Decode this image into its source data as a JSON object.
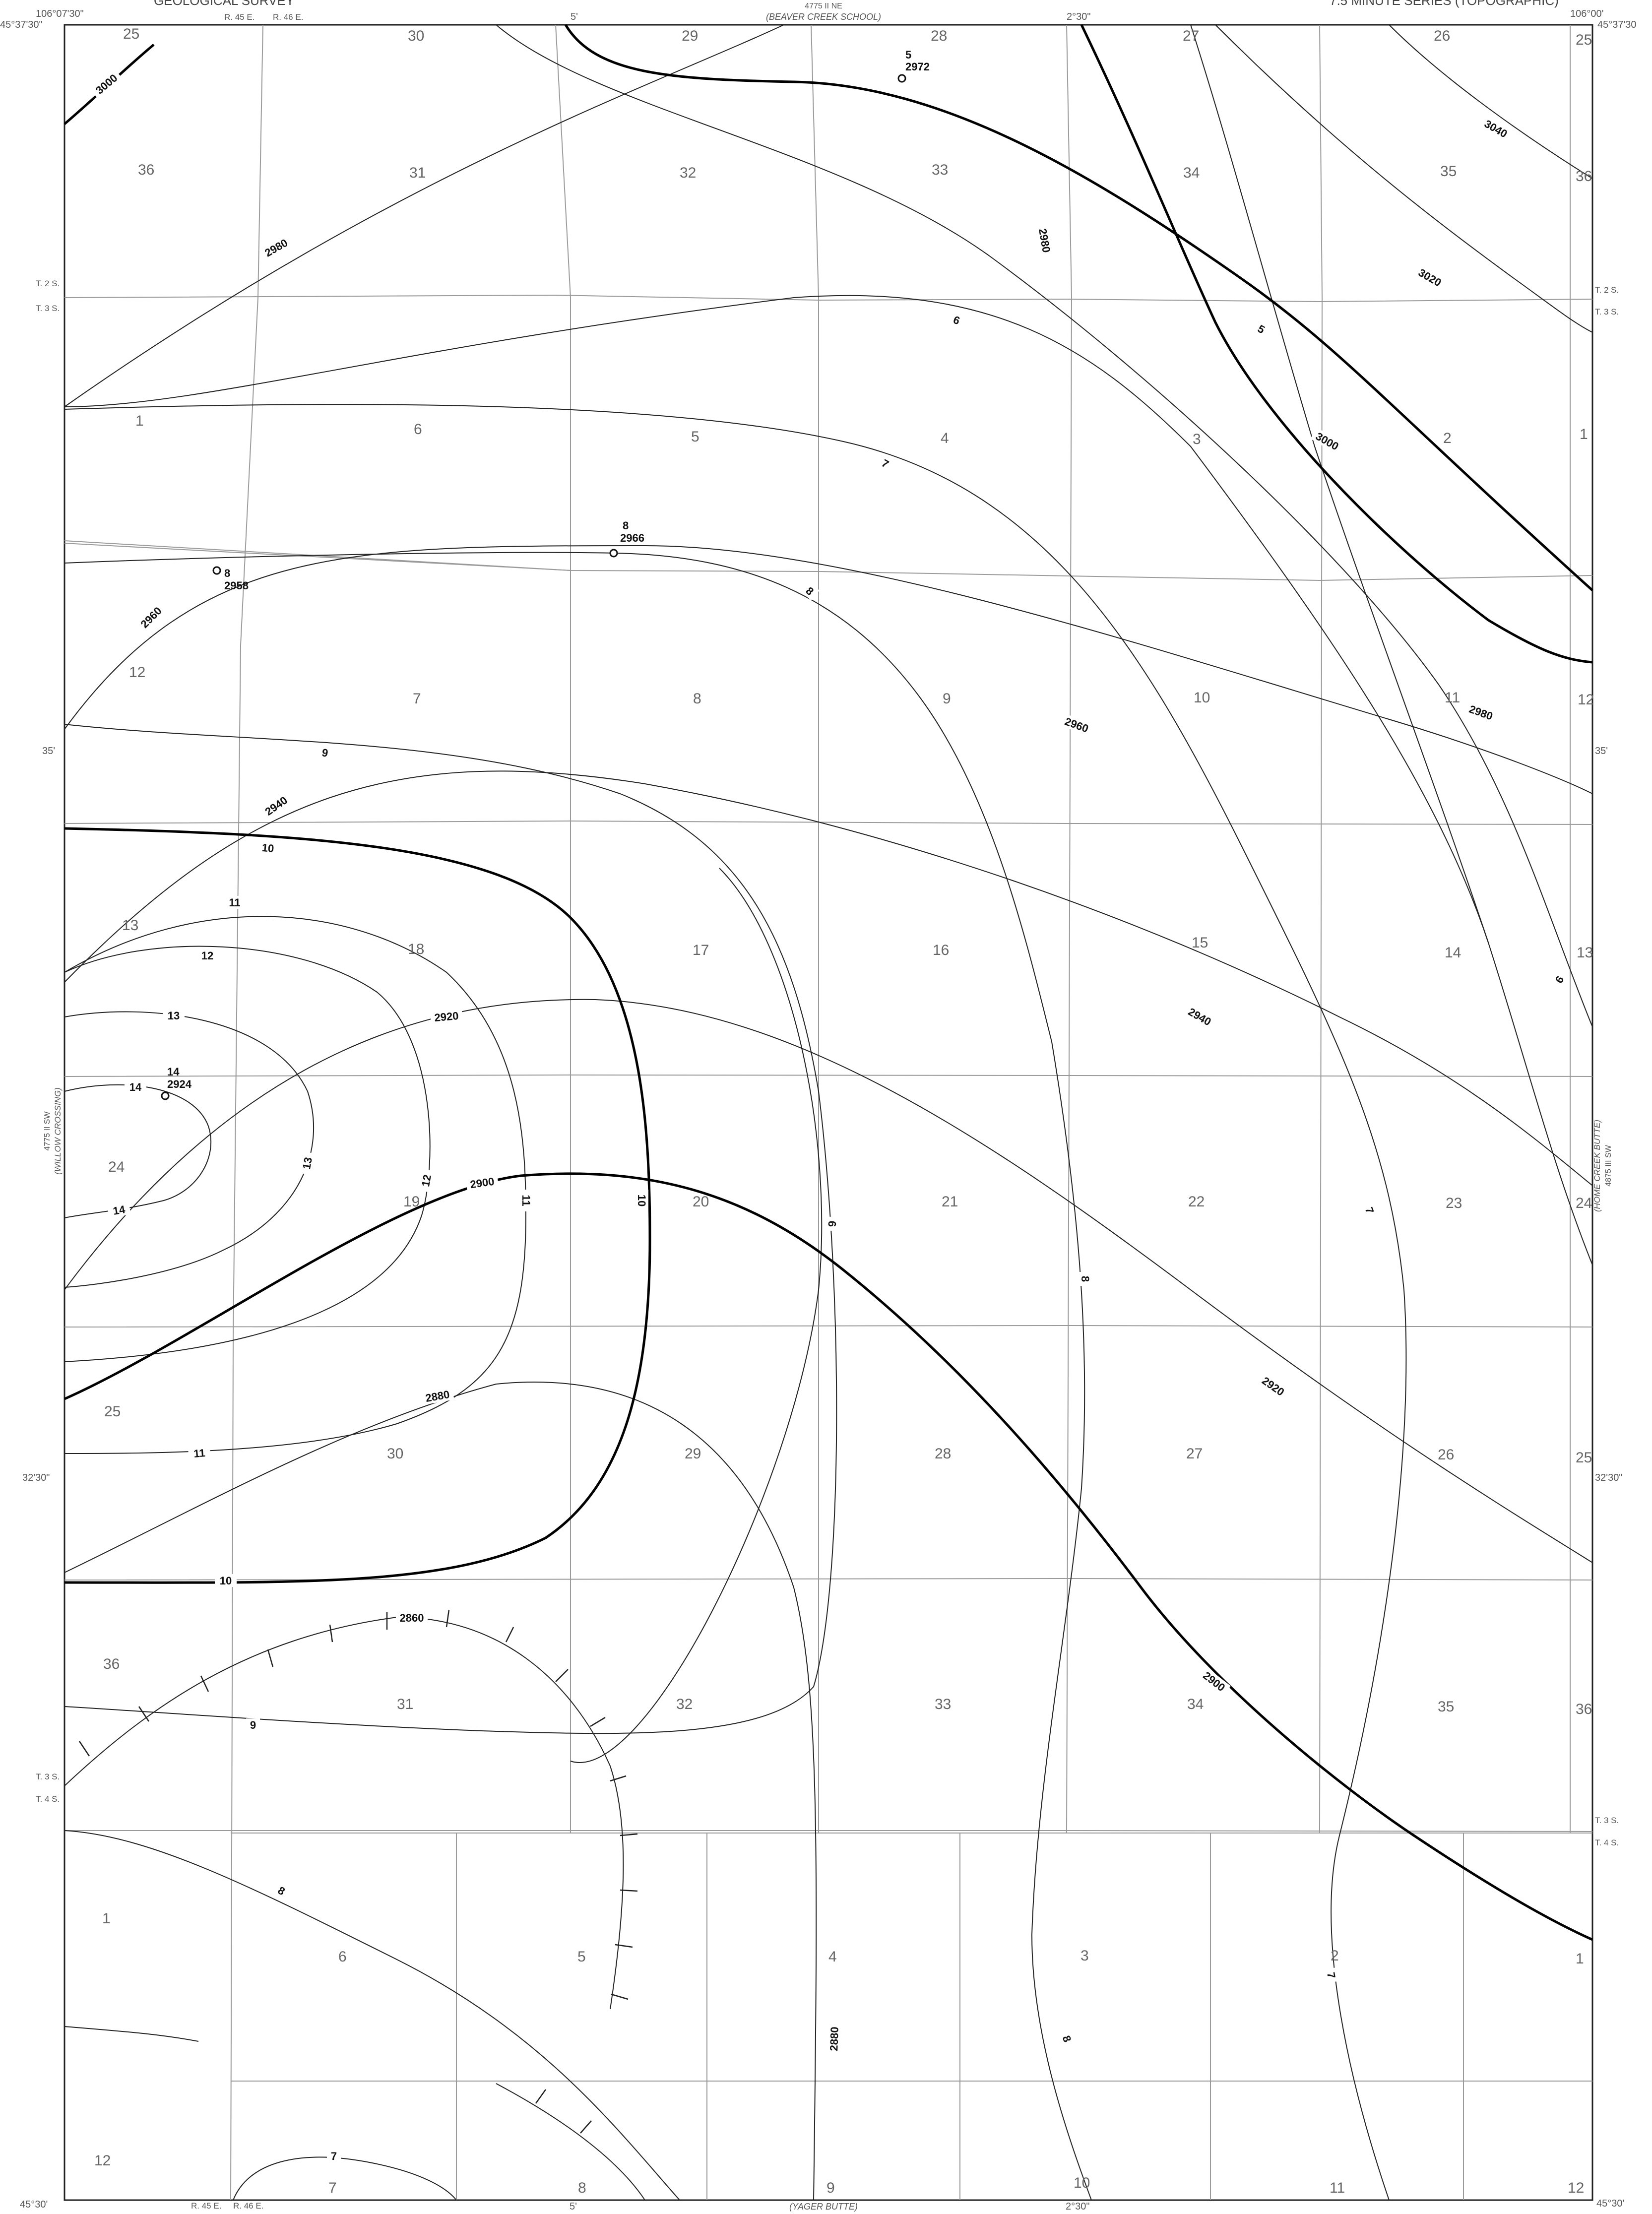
{
  "header": {
    "agency": "GEOLOGICAL SURVEY",
    "series": "7.5 MINUTE SERIES (TOPOGRAPHIC)",
    "quad_ref_top": "4775 II NE",
    "quad_name_top": "(BEAVER CREEK SCHOOL)",
    "quad_ref_left": "4775 II SW",
    "quad_name_left": "(WILLOW CROSSING)",
    "quad_ref_right": "4875 III SW",
    "quad_name_right": "(HOME CREEK BUTTE)",
    "quad_name_bottom": "(YAGER BUTTE)"
  },
  "coords": {
    "lon_west": "106°07'30\"",
    "lon_east": "106°00'",
    "lat_north_left": "45°37'30\"",
    "lat_north_right": "45°37'30",
    "lat_south_left": "45°30'",
    "lat_south_right": "45°30'",
    "tick_5": "5'",
    "tick_230": "2°30\"",
    "tick_5_bottom": "5'",
    "tick_230_bottom": "2°30\"",
    "lat_35_left": "35'",
    "lat_35_right": "35'",
    "lat_3230_left": "32'30\"",
    "lat_3230_right": "32'30\""
  },
  "township_labels": {
    "t2s_left": "T. 2 S.",
    "t3s_left": "T. 3 S.",
    "t2s_right": "T. 2 S.",
    "t3s_right": "T. 3 S.",
    "t3s_left_b": "T. 3 S.",
    "t4s_left": "T. 4 S.",
    "t3s_right_b": "T. 3 S.",
    "t4s_right": "T. 4 S.",
    "r45e_top": "R. 45 E.",
    "r46e_top": "R. 46 E.",
    "r45e_bottom": "R. 45 E.",
    "r46e_bottom": "R. 46 E."
  },
  "sections": [
    "25",
    "30",
    "29",
    "28",
    "27",
    "26",
    "25",
    "36",
    "31",
    "32",
    "33",
    "34",
    "35",
    "36",
    "1",
    "6",
    "5",
    "4",
    "3",
    "2",
    "1",
    "12",
    "7",
    "8",
    "9",
    "10",
    "11",
    "12",
    "13",
    "18",
    "17",
    "16",
    "15",
    "14",
    "13",
    "24",
    "19",
    "20",
    "21",
    "22",
    "23",
    "24",
    "25",
    "30",
    "29",
    "28",
    "27",
    "26",
    "25",
    "36",
    "31",
    "32",
    "33",
    "34",
    "35",
    "36",
    "1",
    "6",
    "5",
    "4",
    "3",
    "2",
    "1",
    "12",
    "7",
    "8",
    "9",
    "10",
    "11",
    "12"
  ],
  "contour_labels": [
    "3000",
    "2980",
    "3040",
    "3020",
    "2980",
    "3000",
    "2960",
    "2960",
    "2980",
    "2940",
    "2940",
    "2920",
    "2900",
    "2920",
    "2880",
    "2880",
    "2900",
    "2860",
    "5",
    "6",
    "7",
    "8",
    "9",
    "10",
    "11",
    "12",
    "13",
    "14",
    "6",
    "7",
    "8",
    "9",
    "10",
    "11",
    "12",
    "13",
    "14",
    "8",
    "11",
    "10",
    "9",
    "8",
    "7",
    "7",
    "8"
  ],
  "points": [
    {
      "id": "5",
      "elev": "2972"
    },
    {
      "id": "8",
      "elev": "2966"
    },
    {
      "id": "8",
      "elev": "2958"
    },
    {
      "id": "14",
      "elev": "2924"
    }
  ],
  "colors": {
    "paper": "#ffffff",
    "line": "#111111",
    "grid": "#9a9a9a"
  }
}
